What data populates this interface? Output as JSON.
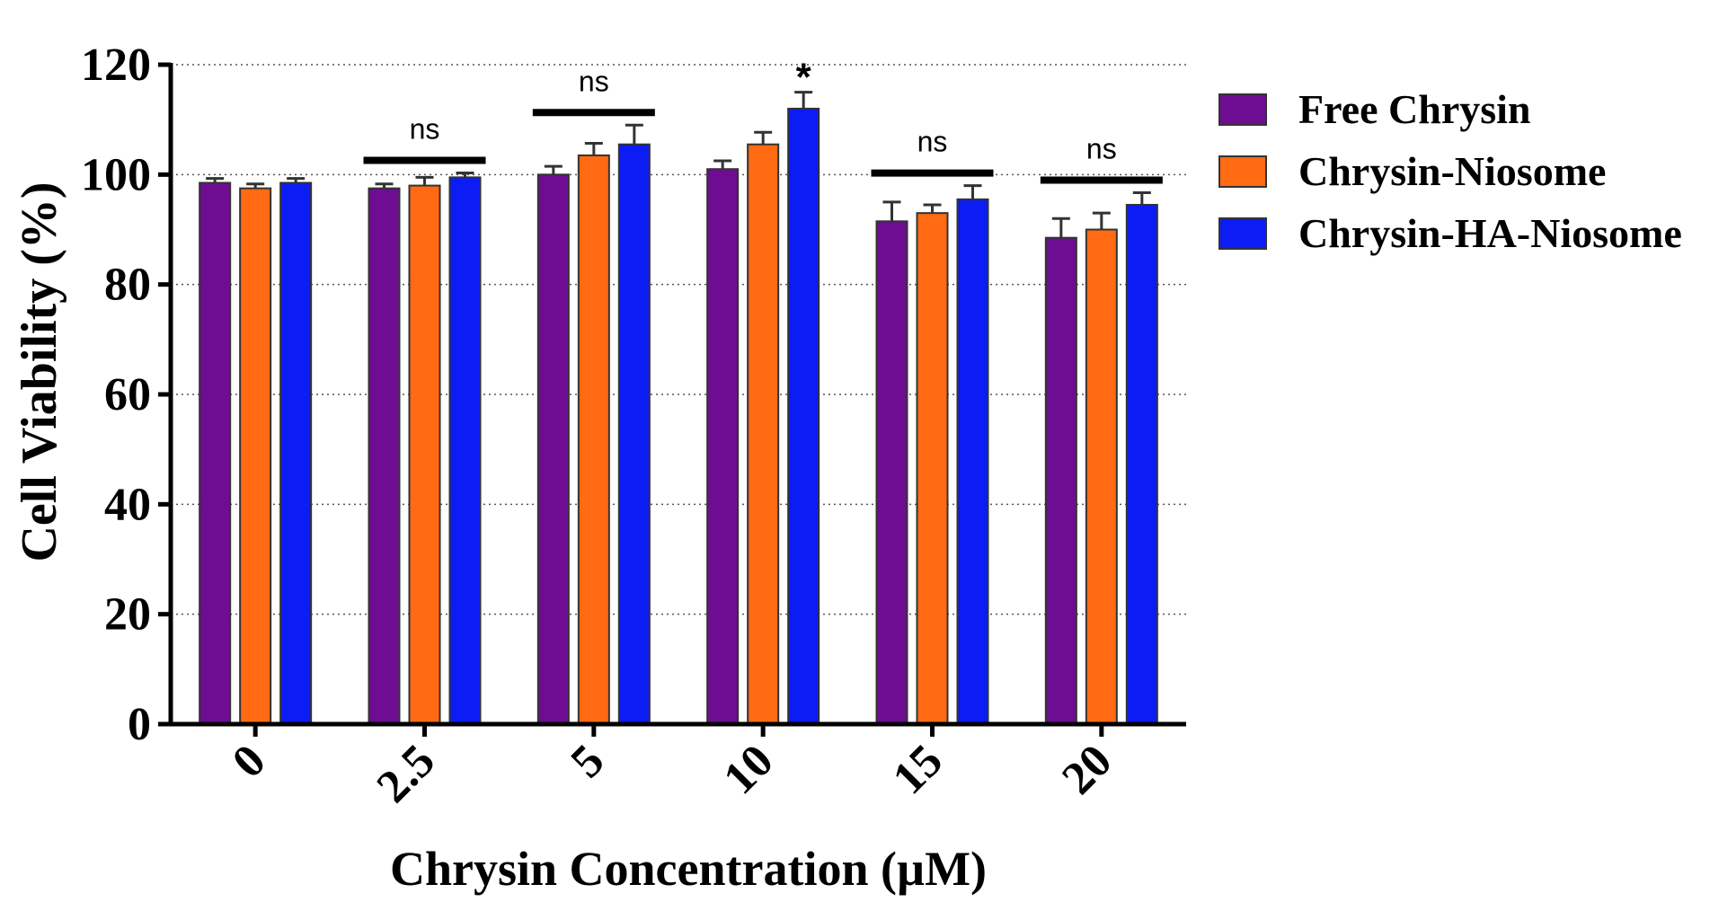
{
  "chart_data": {
    "type": "bar",
    "title": "",
    "xlabel": "Chrysin Concentration (µM)",
    "ylabel": "Cell Viability (%)",
    "ylim": [
      0,
      120
    ],
    "yticks": [
      "0",
      "20",
      "40",
      "60",
      "80",
      "100",
      "120"
    ],
    "grid": "horizontal dotted",
    "legend_position": "top-right",
    "categories": [
      "0",
      "2.5",
      "5",
      "10",
      "15",
      "20"
    ],
    "series": [
      {
        "name": "Free Chrysin",
        "color": "#6e0d91",
        "values": [
          98.5,
          97.5,
          100,
          101,
          91.5,
          88.5
        ],
        "errors": [
          0.8,
          0.8,
          1.5,
          1.5,
          3.5,
          3.5
        ]
      },
      {
        "name": "Chrysin-Niosome",
        "color": "#ff6a13",
        "values": [
          97.5,
          98,
          103.5,
          105.5,
          93,
          90
        ],
        "errors": [
          0.8,
          1.5,
          2.2,
          2.2,
          1.5,
          3
        ]
      },
      {
        "name": "Chrysin-HA-Niosome",
        "color": "#0b1cf5",
        "values": [
          98.5,
          99.5,
          105.5,
          112,
          95.5,
          94.5
        ],
        "errors": [
          0.8,
          0.8,
          3.5,
          3,
          2.5,
          2.2
        ]
      }
    ],
    "annotations": [
      {
        "category": "2.5",
        "text": "ns",
        "bracket": true
      },
      {
        "category": "5",
        "text": "ns",
        "bracket": true
      },
      {
        "category": "10",
        "text": "*",
        "bracket": false
      },
      {
        "category": "15",
        "text": "ns",
        "bracket": true
      },
      {
        "category": "20",
        "text": "ns",
        "bracket": true
      }
    ]
  }
}
